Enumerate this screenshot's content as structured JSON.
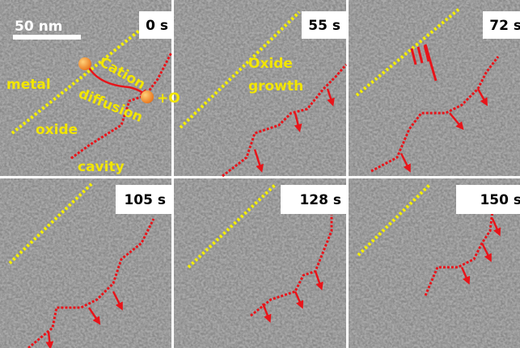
{
  "scale_bar": "50 nm",
  "panels": [
    {
      "time": "0 s"
    },
    {
      "time": "55 s"
    },
    {
      "time": "72 s"
    },
    {
      "time": "105 s"
    },
    {
      "time": "128 s"
    },
    {
      "time": "150 s"
    }
  ],
  "annotations": {
    "metal": "metal",
    "oxide": "oxide",
    "cavity": "cavity",
    "cation": "Cation",
    "diffusion": "diffusion",
    "oxygen": "+O",
    "growth_1": "Oxide",
    "growth_2": "growth"
  }
}
